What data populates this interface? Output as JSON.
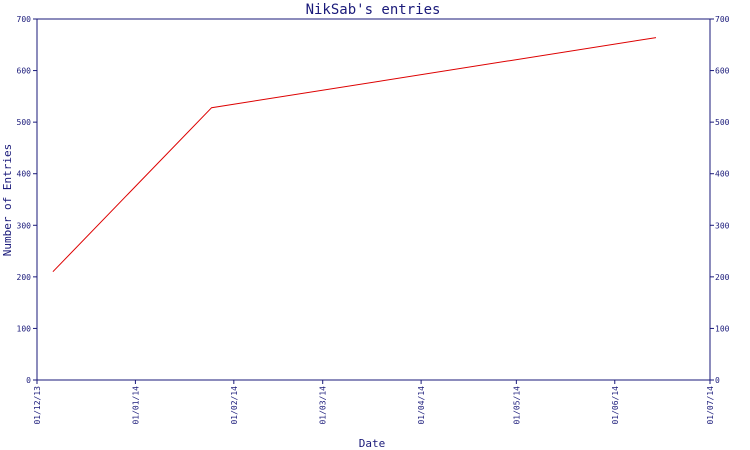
{
  "chart_data": {
    "type": "line",
    "title": "NikSab's entries",
    "xlabel": "Date",
    "ylabel": "Number of Entries",
    "x_tick_labels": [
      "01/12/13",
      "01/01/14",
      "01/02/14",
      "01/03/14",
      "01/04/14",
      "01/05/14",
      "01/06/14",
      "01/07/14"
    ],
    "x_tick_dates": [
      "2013-12-01",
      "2014-01-01",
      "2014-02-01",
      "2014-03-01",
      "2014-04-01",
      "2014-05-01",
      "2014-06-01",
      "2014-07-01"
    ],
    "xlim": [
      "2013-12-01",
      "2014-07-01"
    ],
    "y_ticks": [
      0,
      100,
      200,
      300,
      400,
      500,
      600,
      700
    ],
    "ylim": [
      0,
      700
    ],
    "right_axis_mirrored": true,
    "grid": false,
    "series": [
      {
        "color": "#dd0000",
        "points": [
          {
            "x": "2013-12-06",
            "y": 210
          },
          {
            "x": "2014-01-25",
            "y": 528
          },
          {
            "x": "2014-06-14",
            "y": 664
          }
        ]
      }
    ]
  },
  "colors": {
    "axis": "#1a1a7a",
    "line": "#dd0000",
    "background": "#ffffff"
  }
}
